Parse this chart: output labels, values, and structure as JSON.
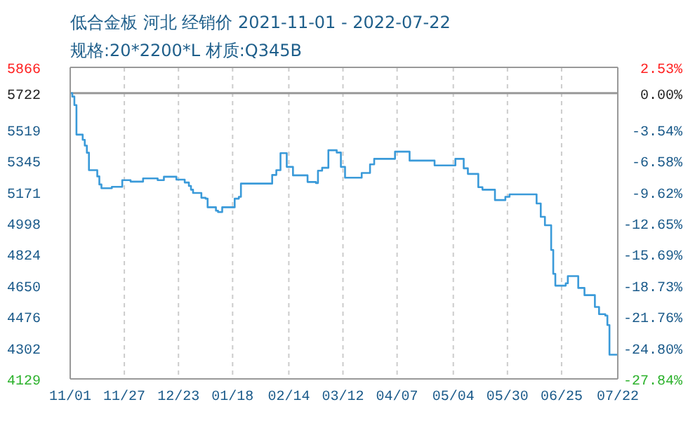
{
  "chart_data": {
    "type": "step",
    "title": "低合金板 河北 经销价 2021-11-01 - 2022-07-22",
    "subtitle": "规格:20*2200*L 材质:Q345B",
    "x": [
      "2021-11-01",
      "2021-11-02",
      "2021-11-03",
      "2021-11-04",
      "2021-11-07",
      "2021-11-08",
      "2021-11-09",
      "2021-11-10",
      "2021-11-14",
      "2021-11-15",
      "2021-11-16",
      "2021-11-21",
      "2021-11-26",
      "2021-11-30",
      "2021-12-06",
      "2021-12-13",
      "2021-12-16",
      "2021-12-22",
      "2021-12-26",
      "2021-12-28",
      "2021-12-29",
      "2021-12-30",
      "2022-01-03",
      "2022-01-05",
      "2022-01-06",
      "2022-01-10",
      "2022-01-11",
      "2022-01-13",
      "2022-01-19",
      "2022-01-21",
      "2022-01-22",
      "2022-02-06",
      "2022-02-08",
      "2022-02-10",
      "2022-02-13",
      "2022-02-16",
      "2022-02-23",
      "2022-02-27",
      "2022-02-28",
      "2022-03-02",
      "2022-03-05",
      "2022-03-09",
      "2022-03-11",
      "2022-03-13",
      "2022-03-21",
      "2022-03-25",
      "2022-03-27",
      "2022-04-06",
      "2022-04-13",
      "2022-04-25",
      "2022-05-05",
      "2022-05-09",
      "2022-05-11",
      "2022-05-16",
      "2022-05-18",
      "2022-05-24",
      "2022-05-29",
      "2022-05-31",
      "2022-06-13",
      "2022-06-15",
      "2022-06-17",
      "2022-06-20",
      "2022-06-21",
      "2022-06-22",
      "2022-06-27",
      "2022-06-28",
      "2022-07-03",
      "2022-07-06",
      "2022-07-11",
      "2022-07-13",
      "2022-07-16",
      "2022-07-17",
      "2022-07-18",
      "2022-07-22"
    ],
    "series": [
      {
        "color": "#3a9ad9",
        "values": [
          5722,
          5703,
          5656,
          5491,
          5462,
          5430,
          5390,
          5293,
          5258,
          5213,
          5192,
          5200,
          5237,
          5229,
          5247,
          5237,
          5256,
          5240,
          5224,
          5205,
          5184,
          5166,
          5139,
          5134,
          5086,
          5067,
          5059,
          5086,
          5134,
          5144,
          5218,
          5266,
          5293,
          5388,
          5311,
          5264,
          5227,
          5221,
          5290,
          5306,
          5404,
          5391,
          5311,
          5251,
          5277,
          5325,
          5356,
          5396,
          5346,
          5319,
          5356,
          5303,
          5272,
          5198,
          5184,
          5126,
          5144,
          5158,
          5107,
          5033,
          4986,
          4848,
          4715,
          4649,
          4662,
          4702,
          4636,
          4596,
          4530,
          4490,
          4482,
          4429,
          4264,
          4264
        ]
      }
    ],
    "xlim": [
      "2021-11-01",
      "2022-07-22"
    ],
    "xticks": [
      {
        "value": "2021-11-01",
        "label": "11/01"
      },
      {
        "value": "2021-11-27",
        "label": "11/27"
      },
      {
        "value": "2021-12-23",
        "label": "12/23"
      },
      {
        "value": "2022-01-18",
        "label": "01/18"
      },
      {
        "value": "2022-02-14",
        "label": "02/14"
      },
      {
        "value": "2022-03-12",
        "label": "03/12"
      },
      {
        "value": "2022-04-07",
        "label": "04/07"
      },
      {
        "value": "2022-05-04",
        "label": "05/04"
      },
      {
        "value": "2022-05-30",
        "label": "05/30"
      },
      {
        "value": "2022-06-25",
        "label": "06/25"
      },
      {
        "value": "2022-07-22",
        "label": "07/22"
      }
    ],
    "ylim": [
      4129,
      5866
    ],
    "yticks": [
      4129,
      4302,
      4476,
      4650,
      4824,
      4998,
      5171,
      5345,
      5519,
      5722,
      5866
    ],
    "y2lim": [
      -27.84,
      2.53
    ],
    "y2ticks": [
      {
        "value": -27.84,
        "label": "-27.84%"
      },
      {
        "value": -24.8,
        "label": "-24.80%"
      },
      {
        "value": -21.76,
        "label": "-21.76%"
      },
      {
        "value": -18.73,
        "label": "-18.73%"
      },
      {
        "value": -15.69,
        "label": "-15.69%"
      },
      {
        "value": -12.65,
        "label": "-12.65%"
      },
      {
        "value": -9.62,
        "label": "-9.62%"
      },
      {
        "value": -6.58,
        "label": "-6.58%"
      },
      {
        "value": -3.54,
        "label": "-3.54%"
      },
      {
        "value": 0,
        "label": "0.00%"
      },
      {
        "value": 2.53,
        "label": "2.53%"
      }
    ],
    "ref_lines": [
      {
        "axis": "y",
        "value": 5722,
        "color": "#999999"
      }
    ],
    "grid": true,
    "marker": "none",
    "line_style": "solid"
  }
}
